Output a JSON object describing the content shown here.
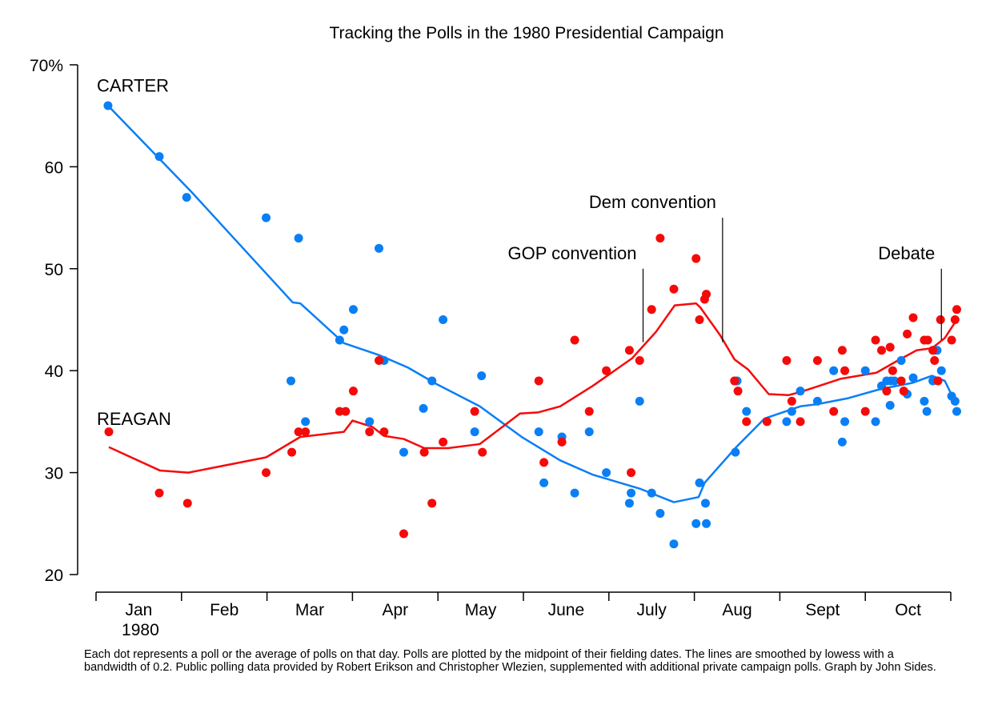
{
  "chart_data": {
    "type": "scatter",
    "title": "Tracking the Polls in the 1980 Presidential Campaign",
    "xlabel": "",
    "ylabel": "",
    "x_units": "months since Jan 1, 1980",
    "xlim": [
      0,
      10
    ],
    "ylim": [
      20,
      70
    ],
    "yticks": [
      {
        "value": 20,
        "label": "20"
      },
      {
        "value": 30,
        "label": "30"
      },
      {
        "value": 40,
        "label": "40"
      },
      {
        "value": 50,
        "label": "50"
      },
      {
        "value": 60,
        "label": "60"
      },
      {
        "value": 70,
        "label": "70%"
      }
    ],
    "xtick_positions": [
      0,
      1,
      2,
      3,
      4,
      5,
      6,
      7,
      8,
      9,
      10
    ],
    "month_labels": [
      "Jan",
      "Feb",
      "Mar",
      "Apr",
      "May",
      "June",
      "July",
      "Aug",
      "Sept",
      "Oct"
    ],
    "year_label": "1980",
    "grid": false,
    "series": [
      {
        "name": "CARTER",
        "color": "#0a7ff5",
        "points": [
          [
            0.14,
            66
          ],
          [
            0.74,
            61
          ],
          [
            1.06,
            57
          ],
          [
            1.99,
            55
          ],
          [
            2.37,
            53
          ],
          [
            2.28,
            39
          ],
          [
            2.45,
            35
          ],
          [
            2.85,
            43
          ],
          [
            2.9,
            44
          ],
          [
            3.01,
            46
          ],
          [
            3.2,
            35
          ],
          [
            3.31,
            52
          ],
          [
            3.37,
            41
          ],
          [
            3.6,
            32
          ],
          [
            3.83,
            36.3
          ],
          [
            3.93,
            39
          ],
          [
            4.06,
            45
          ],
          [
            4.43,
            34
          ],
          [
            4.51,
            39.5
          ],
          [
            5.18,
            34
          ],
          [
            5.24,
            29
          ],
          [
            5.45,
            33.5
          ],
          [
            5.6,
            28
          ],
          [
            5.77,
            34
          ],
          [
            5.97,
            30
          ],
          [
            6.24,
            27
          ],
          [
            6.26,
            28
          ],
          [
            6.36,
            37
          ],
          [
            6.5,
            28
          ],
          [
            6.6,
            26
          ],
          [
            6.76,
            23
          ],
          [
            7.02,
            25
          ],
          [
            7.06,
            29
          ],
          [
            7.13,
            27
          ],
          [
            7.14,
            25
          ],
          [
            7.48,
            32
          ],
          [
            7.5,
            39
          ],
          [
            7.61,
            36
          ],
          [
            8.08,
            35
          ],
          [
            8.14,
            36
          ],
          [
            8.24,
            38
          ],
          [
            8.44,
            37
          ],
          [
            8.63,
            40
          ],
          [
            8.73,
            33
          ],
          [
            8.76,
            35
          ],
          [
            9.0,
            40
          ],
          [
            9.12,
            35
          ],
          [
            9.19,
            38.5
          ],
          [
            9.25,
            39
          ],
          [
            9.29,
            36.6
          ],
          [
            9.3,
            39
          ],
          [
            9.34,
            39
          ],
          [
            9.42,
            41
          ],
          [
            9.49,
            37.7
          ],
          [
            9.56,
            39.3
          ],
          [
            9.69,
            37
          ],
          [
            9.72,
            36
          ],
          [
            9.79,
            39
          ],
          [
            9.81,
            42
          ],
          [
            9.84,
            42
          ],
          [
            9.89,
            40
          ],
          [
            10.01,
            37.5
          ],
          [
            10.05,
            37
          ],
          [
            10.07,
            36
          ]
        ],
        "smooth": [
          [
            0.14,
            66
          ],
          [
            1.12,
            57.5
          ],
          [
            2.3,
            46.7
          ],
          [
            2.39,
            46.6
          ],
          [
            2.9,
            42.7
          ],
          [
            3.32,
            41.5
          ],
          [
            3.65,
            40.3
          ],
          [
            3.98,
            38.7
          ],
          [
            4.49,
            36.5
          ],
          [
            4.98,
            33.5
          ],
          [
            5.43,
            31.2
          ],
          [
            5.81,
            29.8
          ],
          [
            6.37,
            28.4
          ],
          [
            6.76,
            27.1
          ],
          [
            7.05,
            27.6
          ],
          [
            7.12,
            29
          ],
          [
            7.49,
            32.5
          ],
          [
            7.82,
            35.3
          ],
          [
            8.24,
            36.5
          ],
          [
            8.43,
            36.7
          ],
          [
            8.8,
            37.3
          ],
          [
            9.18,
            38.2
          ],
          [
            9.55,
            38.8
          ],
          [
            9.78,
            39.5
          ],
          [
            9.93,
            39
          ],
          [
            10.07,
            36.6
          ]
        ]
      },
      {
        "name": "REAGAN",
        "color": "#f50a0a",
        "points": [
          [
            0.15,
            34
          ],
          [
            0.74,
            28
          ],
          [
            1.07,
            27
          ],
          [
            1.99,
            30
          ],
          [
            2.29,
            32
          ],
          [
            2.37,
            34
          ],
          [
            2.45,
            34
          ],
          [
            2.85,
            36
          ],
          [
            2.92,
            36
          ],
          [
            3.01,
            38
          ],
          [
            3.2,
            34
          ],
          [
            3.31,
            41
          ],
          [
            3.37,
            34
          ],
          [
            3.6,
            24
          ],
          [
            3.84,
            32
          ],
          [
            3.93,
            27
          ],
          [
            4.06,
            33
          ],
          [
            4.43,
            36
          ],
          [
            4.52,
            32
          ],
          [
            5.18,
            39
          ],
          [
            5.24,
            31
          ],
          [
            5.45,
            33
          ],
          [
            5.6,
            43
          ],
          [
            5.77,
            36
          ],
          [
            5.97,
            40
          ],
          [
            6.24,
            42
          ],
          [
            6.26,
            30
          ],
          [
            6.36,
            41
          ],
          [
            6.5,
            46
          ],
          [
            6.6,
            53
          ],
          [
            6.76,
            48
          ],
          [
            7.02,
            51
          ],
          [
            7.06,
            45
          ],
          [
            7.12,
            47
          ],
          [
            7.14,
            47.5
          ],
          [
            7.47,
            39
          ],
          [
            7.51,
            38
          ],
          [
            7.61,
            35
          ],
          [
            7.85,
            35
          ],
          [
            8.08,
            41
          ],
          [
            8.14,
            37
          ],
          [
            8.24,
            35
          ],
          [
            8.44,
            41
          ],
          [
            8.63,
            36
          ],
          [
            8.73,
            42
          ],
          [
            8.76,
            40
          ],
          [
            9.0,
            36
          ],
          [
            9.12,
            43
          ],
          [
            9.19,
            42
          ],
          [
            9.25,
            38
          ],
          [
            9.29,
            42.3
          ],
          [
            9.32,
            40
          ],
          [
            9.42,
            39
          ],
          [
            9.45,
            38
          ],
          [
            9.49,
            43.6
          ],
          [
            9.56,
            45.2
          ],
          [
            9.69,
            43
          ],
          [
            9.73,
            43
          ],
          [
            9.79,
            42
          ],
          [
            9.81,
            41
          ],
          [
            9.85,
            39
          ],
          [
            9.88,
            45
          ],
          [
            10.01,
            43
          ],
          [
            10.05,
            45
          ],
          [
            10.07,
            46
          ]
        ],
        "smooth": [
          [
            0.15,
            32.5
          ],
          [
            0.75,
            30.2
          ],
          [
            1.08,
            30
          ],
          [
            1.99,
            31.5
          ],
          [
            2.39,
            33.5
          ],
          [
            2.9,
            34
          ],
          [
            3.0,
            35.1
          ],
          [
            3.23,
            34.5
          ],
          [
            3.37,
            33.6
          ],
          [
            3.6,
            33.3
          ],
          [
            3.84,
            32.4
          ],
          [
            4.12,
            32.4
          ],
          [
            4.49,
            32.8
          ],
          [
            4.96,
            35.8
          ],
          [
            5.17,
            35.9
          ],
          [
            5.43,
            36.5
          ],
          [
            5.81,
            38.5
          ],
          [
            6.27,
            41.2
          ],
          [
            6.41,
            42.5
          ],
          [
            6.55,
            43.8
          ],
          [
            6.77,
            46.4
          ],
          [
            7.02,
            46.6
          ],
          [
            7.07,
            46.2
          ],
          [
            7.3,
            43.5
          ],
          [
            7.47,
            41.1
          ],
          [
            7.63,
            40.1
          ],
          [
            7.87,
            37.7
          ],
          [
            8.1,
            37.6
          ],
          [
            8.24,
            37.9
          ],
          [
            8.71,
            39.2
          ],
          [
            9.13,
            39.8
          ],
          [
            9.36,
            40.9
          ],
          [
            9.6,
            42
          ],
          [
            9.78,
            42.2
          ],
          [
            9.93,
            43.2
          ],
          [
            10.07,
            45
          ]
        ]
      }
    ],
    "series_labels": [
      {
        "text": "CARTER",
        "x": 0.0,
        "y": 68
      },
      {
        "text": "REAGAN",
        "x": 0.0,
        "y": 35.3
      }
    ],
    "annotations": [
      {
        "text": "GOP convention",
        "x": 6.4,
        "y_from": 42.8,
        "y_to": 50
      },
      {
        "text": "Dem convention",
        "x": 7.33,
        "y_from": 42.8,
        "y_to": 55
      },
      {
        "text": "Debate",
        "x": 9.89,
        "y_from": 43,
        "y_to": 50
      }
    ],
    "footnote": "Each dot represents a poll or the average of polls on that day. Polls are plotted by the midpoint of their fielding dates. The lines are smoothed by lowess with a bandwidth of 0.2.  Public polling data provided by Robert Erikson and Christopher Wlezien, supplemented with additional private campaign polls. Graph by John Sides."
  }
}
